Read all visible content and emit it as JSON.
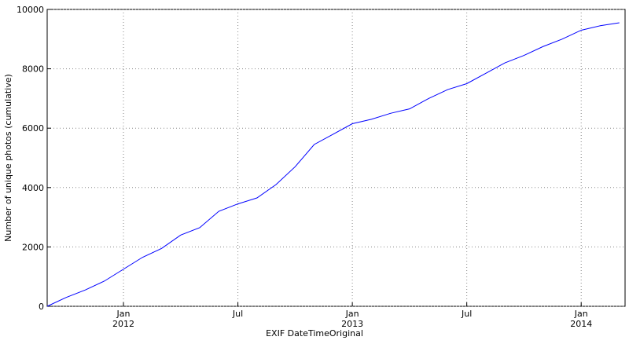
{
  "chart_data": {
    "type": "line",
    "xlabel": "EXIF DateTimeOriginal",
    "ylabel": "Number of unique photos (cumulative)",
    "x": [
      "2011-09",
      "2011-10",
      "2011-11",
      "2011-12",
      "2012-01",
      "2012-02",
      "2012-03",
      "2012-04",
      "2012-05",
      "2012-06",
      "2012-07",
      "2012-08",
      "2012-09",
      "2012-10",
      "2012-11",
      "2012-12",
      "2013-01",
      "2013-02",
      "2013-03",
      "2013-04",
      "2013-05",
      "2013-06",
      "2013-07",
      "2013-08",
      "2013-09",
      "2013-10",
      "2013-11",
      "2013-12",
      "2014-01",
      "2014-02",
      "2014-03"
    ],
    "series": [
      {
        "color": "#0000ff",
        "values": [
          0,
          300,
          550,
          850,
          1250,
          1650,
          1950,
          2400,
          2650,
          3200,
          3450,
          3650,
          4100,
          4700,
          5450,
          5800,
          6150,
          6300,
          6500,
          6650,
          7000,
          7300,
          7500,
          7850,
          8200,
          8450,
          8750,
          9000,
          9300,
          9450,
          9550
        ]
      }
    ],
    "xlim": [
      "2011-09",
      "2014-03"
    ],
    "xticks": [
      {
        "value": "2012-01",
        "label": "Jan\n2012"
      },
      {
        "value": "2012-07",
        "label": "Jul"
      },
      {
        "value": "2013-01",
        "label": "Jan\n2013"
      },
      {
        "value": "2013-07",
        "label": "Jul"
      },
      {
        "value": "2014-01",
        "label": "Jan\n2014"
      }
    ],
    "ylim": [
      0,
      10000
    ],
    "yticks": [
      0,
      2000,
      4000,
      6000,
      8000,
      10000
    ],
    "grid": true
  }
}
